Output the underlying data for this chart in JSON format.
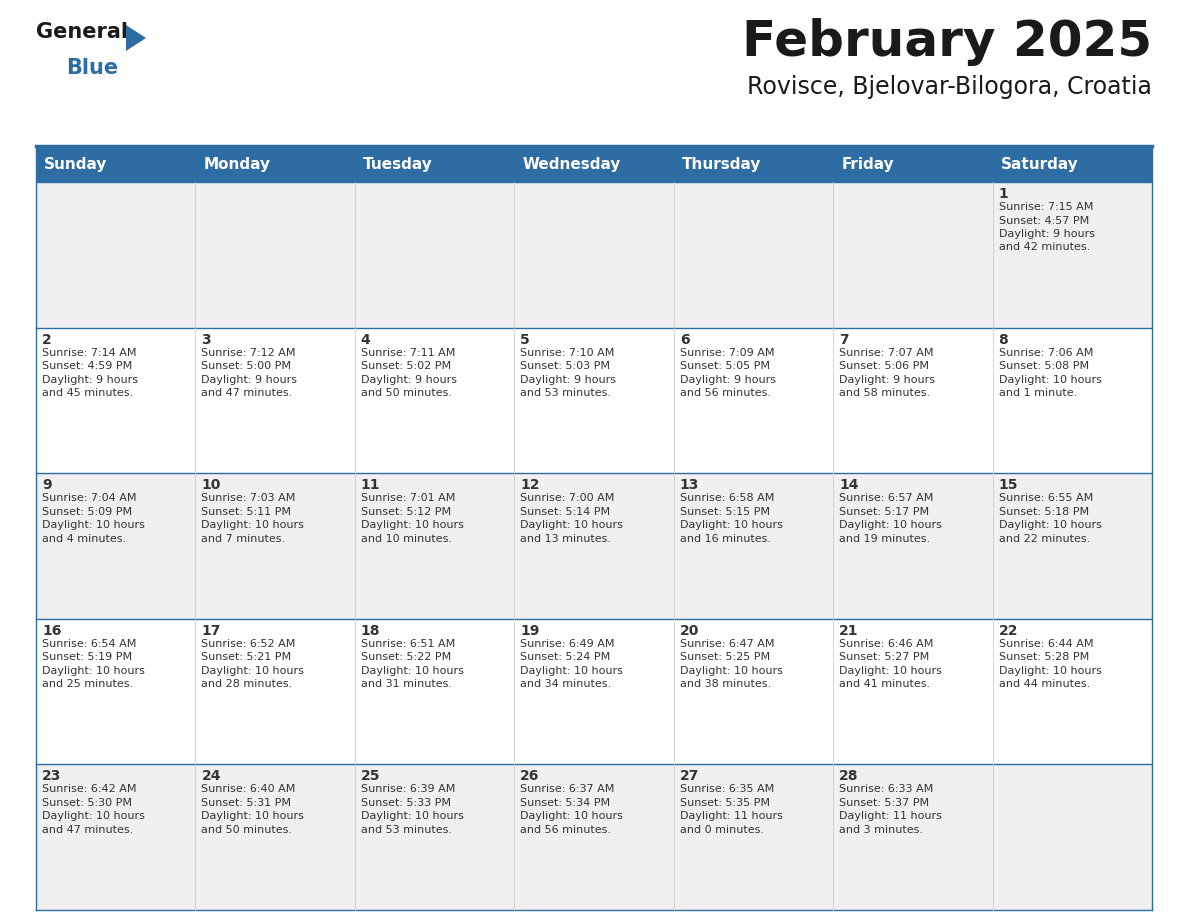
{
  "title": "February 2025",
  "subtitle": "Rovisce, Bjelovar-Bilogora, Croatia",
  "header_bg": "#2E6DA4",
  "header_text": "#FFFFFF",
  "row_bg_odd": "#F0F0F0",
  "row_bg_even": "#FFFFFF",
  "text_color": "#333333",
  "border_color": "#2E6DA4",
  "day_headers": [
    "Sunday",
    "Monday",
    "Tuesday",
    "Wednesday",
    "Thursday",
    "Friday",
    "Saturday"
  ],
  "weeks": [
    [
      {
        "day": "",
        "info": ""
      },
      {
        "day": "",
        "info": ""
      },
      {
        "day": "",
        "info": ""
      },
      {
        "day": "",
        "info": ""
      },
      {
        "day": "",
        "info": ""
      },
      {
        "day": "",
        "info": ""
      },
      {
        "day": "1",
        "info": "Sunrise: 7:15 AM\nSunset: 4:57 PM\nDaylight: 9 hours\nand 42 minutes."
      }
    ],
    [
      {
        "day": "2",
        "info": "Sunrise: 7:14 AM\nSunset: 4:59 PM\nDaylight: 9 hours\nand 45 minutes."
      },
      {
        "day": "3",
        "info": "Sunrise: 7:12 AM\nSunset: 5:00 PM\nDaylight: 9 hours\nand 47 minutes."
      },
      {
        "day": "4",
        "info": "Sunrise: 7:11 AM\nSunset: 5:02 PM\nDaylight: 9 hours\nand 50 minutes."
      },
      {
        "day": "5",
        "info": "Sunrise: 7:10 AM\nSunset: 5:03 PM\nDaylight: 9 hours\nand 53 minutes."
      },
      {
        "day": "6",
        "info": "Sunrise: 7:09 AM\nSunset: 5:05 PM\nDaylight: 9 hours\nand 56 minutes."
      },
      {
        "day": "7",
        "info": "Sunrise: 7:07 AM\nSunset: 5:06 PM\nDaylight: 9 hours\nand 58 minutes."
      },
      {
        "day": "8",
        "info": "Sunrise: 7:06 AM\nSunset: 5:08 PM\nDaylight: 10 hours\nand 1 minute."
      }
    ],
    [
      {
        "day": "9",
        "info": "Sunrise: 7:04 AM\nSunset: 5:09 PM\nDaylight: 10 hours\nand 4 minutes."
      },
      {
        "day": "10",
        "info": "Sunrise: 7:03 AM\nSunset: 5:11 PM\nDaylight: 10 hours\nand 7 minutes."
      },
      {
        "day": "11",
        "info": "Sunrise: 7:01 AM\nSunset: 5:12 PM\nDaylight: 10 hours\nand 10 minutes."
      },
      {
        "day": "12",
        "info": "Sunrise: 7:00 AM\nSunset: 5:14 PM\nDaylight: 10 hours\nand 13 minutes."
      },
      {
        "day": "13",
        "info": "Sunrise: 6:58 AM\nSunset: 5:15 PM\nDaylight: 10 hours\nand 16 minutes."
      },
      {
        "day": "14",
        "info": "Sunrise: 6:57 AM\nSunset: 5:17 PM\nDaylight: 10 hours\nand 19 minutes."
      },
      {
        "day": "15",
        "info": "Sunrise: 6:55 AM\nSunset: 5:18 PM\nDaylight: 10 hours\nand 22 minutes."
      }
    ],
    [
      {
        "day": "16",
        "info": "Sunrise: 6:54 AM\nSunset: 5:19 PM\nDaylight: 10 hours\nand 25 minutes."
      },
      {
        "day": "17",
        "info": "Sunrise: 6:52 AM\nSunset: 5:21 PM\nDaylight: 10 hours\nand 28 minutes."
      },
      {
        "day": "18",
        "info": "Sunrise: 6:51 AM\nSunset: 5:22 PM\nDaylight: 10 hours\nand 31 minutes."
      },
      {
        "day": "19",
        "info": "Sunrise: 6:49 AM\nSunset: 5:24 PM\nDaylight: 10 hours\nand 34 minutes."
      },
      {
        "day": "20",
        "info": "Sunrise: 6:47 AM\nSunset: 5:25 PM\nDaylight: 10 hours\nand 38 minutes."
      },
      {
        "day": "21",
        "info": "Sunrise: 6:46 AM\nSunset: 5:27 PM\nDaylight: 10 hours\nand 41 minutes."
      },
      {
        "day": "22",
        "info": "Sunrise: 6:44 AM\nSunset: 5:28 PM\nDaylight: 10 hours\nand 44 minutes."
      }
    ],
    [
      {
        "day": "23",
        "info": "Sunrise: 6:42 AM\nSunset: 5:30 PM\nDaylight: 10 hours\nand 47 minutes."
      },
      {
        "day": "24",
        "info": "Sunrise: 6:40 AM\nSunset: 5:31 PM\nDaylight: 10 hours\nand 50 minutes."
      },
      {
        "day": "25",
        "info": "Sunrise: 6:39 AM\nSunset: 5:33 PM\nDaylight: 10 hours\nand 53 minutes."
      },
      {
        "day": "26",
        "info": "Sunrise: 6:37 AM\nSunset: 5:34 PM\nDaylight: 10 hours\nand 56 minutes."
      },
      {
        "day": "27",
        "info": "Sunrise: 6:35 AM\nSunset: 5:35 PM\nDaylight: 11 hours\nand 0 minutes."
      },
      {
        "day": "28",
        "info": "Sunrise: 6:33 AM\nSunset: 5:37 PM\nDaylight: 11 hours\nand 3 minutes."
      },
      {
        "day": "",
        "info": ""
      }
    ]
  ],
  "logo_text1": "General",
  "logo_text2": "Blue",
  "logo_color1": "#1a1a1a",
  "logo_color2": "#2E6DA4",
  "logo_triangle_color": "#2E6DA4",
  "title_fontsize": 36,
  "subtitle_fontsize": 17,
  "header_fontsize": 11,
  "day_num_fontsize": 10,
  "info_fontsize": 8
}
